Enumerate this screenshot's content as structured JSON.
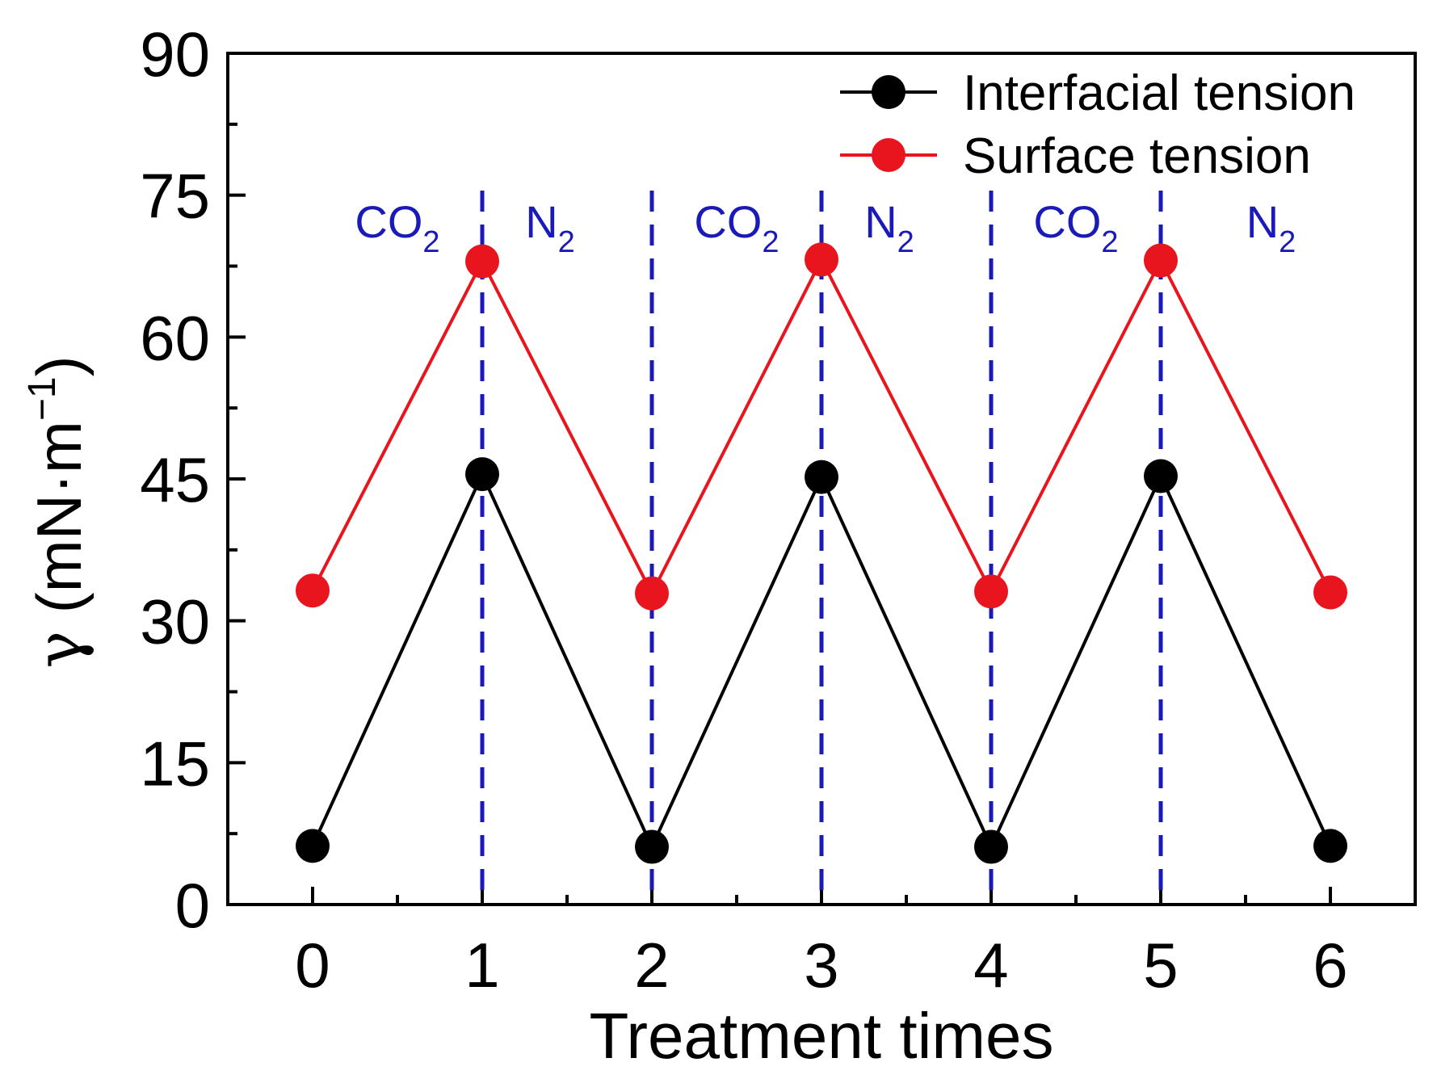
{
  "chart_data": {
    "type": "line",
    "title": "",
    "xlabel": "Treatment times",
    "ylabel": {
      "symbol": "γ",
      "open": " (mN·m",
      "exponent": "−1",
      "close": ")"
    },
    "x": [
      0,
      1,
      2,
      3,
      4,
      5,
      6
    ],
    "xlim": [
      -0.5,
      6.5
    ],
    "ylim": [
      0,
      90
    ],
    "yticks": [
      0,
      15,
      30,
      45,
      60,
      75,
      90
    ],
    "xticks": [
      0,
      1,
      2,
      3,
      4,
      5,
      6
    ],
    "grid": false,
    "legend_position": "top-right",
    "series": [
      {
        "name": "Interfacial tension",
        "color": "#000000",
        "values": [
          6.2,
          45.5,
          6.1,
          45.2,
          6.1,
          45.3,
          6.2
        ]
      },
      {
        "name": "Surface tension",
        "color": "#e8141e",
        "values": [
          33.2,
          68.0,
          32.9,
          68.2,
          33.1,
          68.1,
          33.0
        ]
      }
    ],
    "vlines": {
      "x": [
        1,
        2,
        3,
        4,
        5
      ],
      "color": "#1a1ab8",
      "style": "dashed"
    },
    "annotations": [
      {
        "base": "CO",
        "sub": "2",
        "x": 0.5
      },
      {
        "base": "N",
        "sub": "2",
        "x": 1.4
      },
      {
        "base": "CO",
        "sub": "2",
        "x": 2.5
      },
      {
        "base": "N",
        "sub": "2",
        "x": 3.4
      },
      {
        "base": "CO",
        "sub": "2",
        "x": 4.5
      },
      {
        "base": "N",
        "sub": "2",
        "x": 5.65
      }
    ]
  }
}
